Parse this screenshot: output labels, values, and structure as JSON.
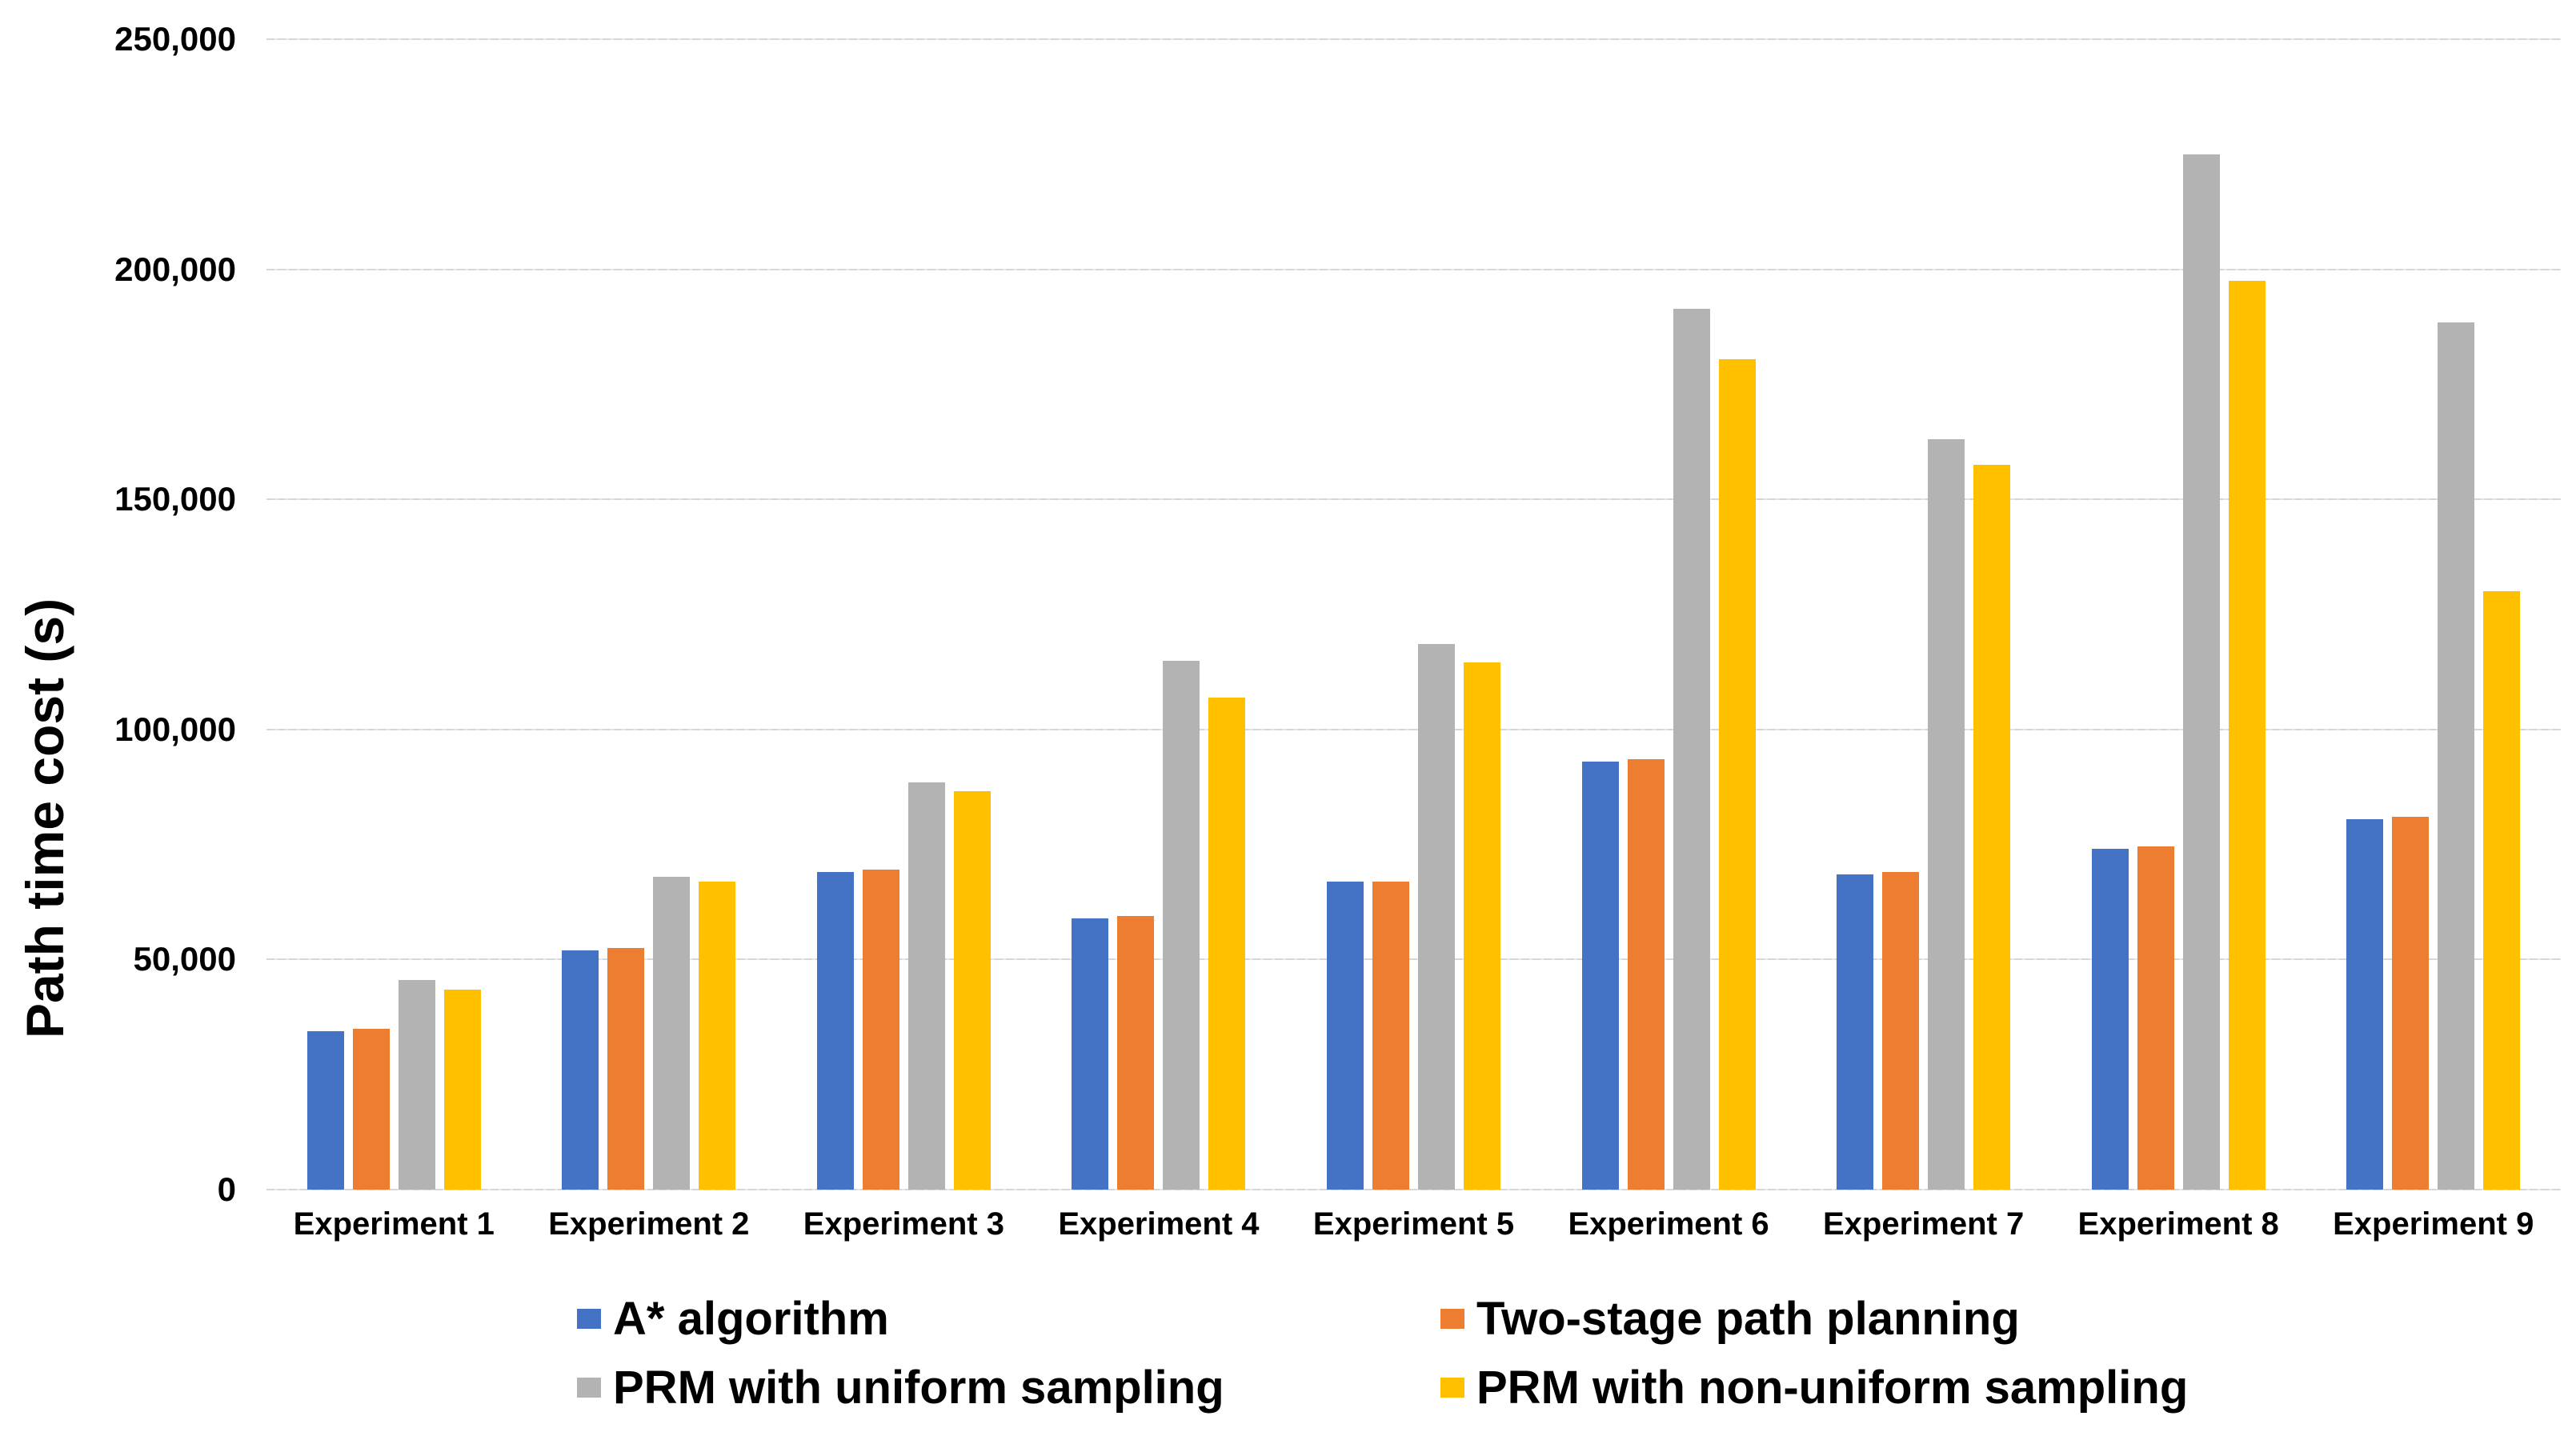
{
  "chart_data": {
    "type": "bar",
    "title": "",
    "xlabel": "",
    "ylabel": "Path time cost (s)",
    "ylim": [
      0,
      250000
    ],
    "ytick_values": [
      0,
      50000,
      100000,
      150000,
      200000,
      250000
    ],
    "ytick_labels": [
      "0",
      "50,000",
      "100,000",
      "150,000",
      "200,000",
      "250,000"
    ],
    "grid": "horizontal gridlines on",
    "legend_position": "bottom, two columns by two rows",
    "categories": [
      "Experiment 1",
      "Experiment 2",
      "Experiment 3",
      "Experiment 4",
      "Experiment 5",
      "Experiment 6",
      "Experiment 7",
      "Experiment 8",
      "Experiment 9"
    ],
    "series": [
      {
        "name": "A* algorithm",
        "color": "#4472C4",
        "pattern": false,
        "values": [
          34500,
          52000,
          69000,
          59000,
          67000,
          93000,
          68500,
          74000,
          80500
        ]
      },
      {
        "name": "Two-stage path planning",
        "color": "#ED7D31",
        "pattern": false,
        "values": [
          35000,
          52500,
          69500,
          59500,
          67000,
          93500,
          69000,
          74500,
          81000
        ]
      },
      {
        "name": "PRM with uniform sampling",
        "color": "#A6A6A6",
        "pattern": true,
        "values": [
          45500,
          68000,
          88500,
          115000,
          118500,
          191500,
          163000,
          225000,
          188500
        ]
      },
      {
        "name": "PRM with non-uniform sampling",
        "color": "#FFC000",
        "pattern": false,
        "values": [
          43500,
          67000,
          86500,
          107000,
          114500,
          180500,
          157500,
          197500,
          130000
        ]
      }
    ],
    "colors": {
      "gridline": "#D9D9D9",
      "text": "#000000",
      "background": "#FFFFFF"
    }
  }
}
